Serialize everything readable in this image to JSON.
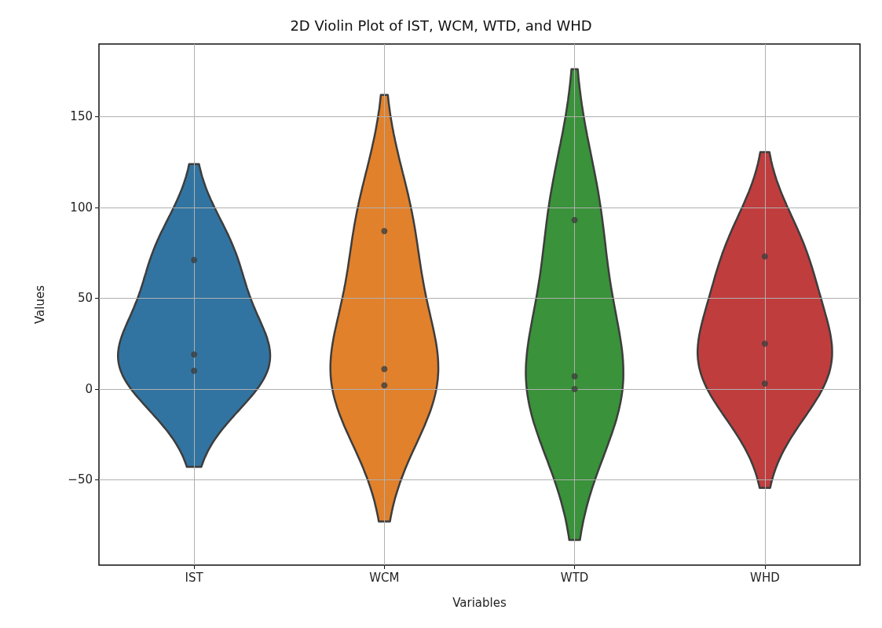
{
  "chart_data": {
    "type": "scatter",
    "title": "2D Violin Plot of IST, WCM, WTD, and WHD",
    "xlabel": "Variables",
    "ylabel": "Values",
    "categories": [
      "IST",
      "WCM",
      "WTD",
      "WHD"
    ],
    "colors": [
      "#3274a1",
      "#e1812c",
      "#3a923a",
      "#c03d3e"
    ],
    "series": [
      {
        "color": "#3d3d3d",
        "x": [
          "IST",
          "IST",
          "IST"
        ],
        "values": [
          71,
          19,
          10
        ]
      },
      {
        "color": "#3d3d3d",
        "x": [
          "WCM",
          "WCM",
          "WCM"
        ],
        "values": [
          87,
          11,
          2
        ]
      },
      {
        "color": "#3d3d3d",
        "x": [
          "WTD",
          "WTD",
          "WTD"
        ],
        "values": [
          93,
          7,
          0
        ]
      },
      {
        "color": "#3d3d3d",
        "x": [
          "WHD",
          "WHD",
          "WHD"
        ],
        "values": [
          73,
          25,
          3
        ]
      }
    ],
    "marker": "circle",
    "ylim": [
      -97,
      190
    ],
    "yticks": [
      {
        "value": -50,
        "label": "−50"
      },
      0,
      50,
      100,
      150
    ],
    "grid": true
  }
}
